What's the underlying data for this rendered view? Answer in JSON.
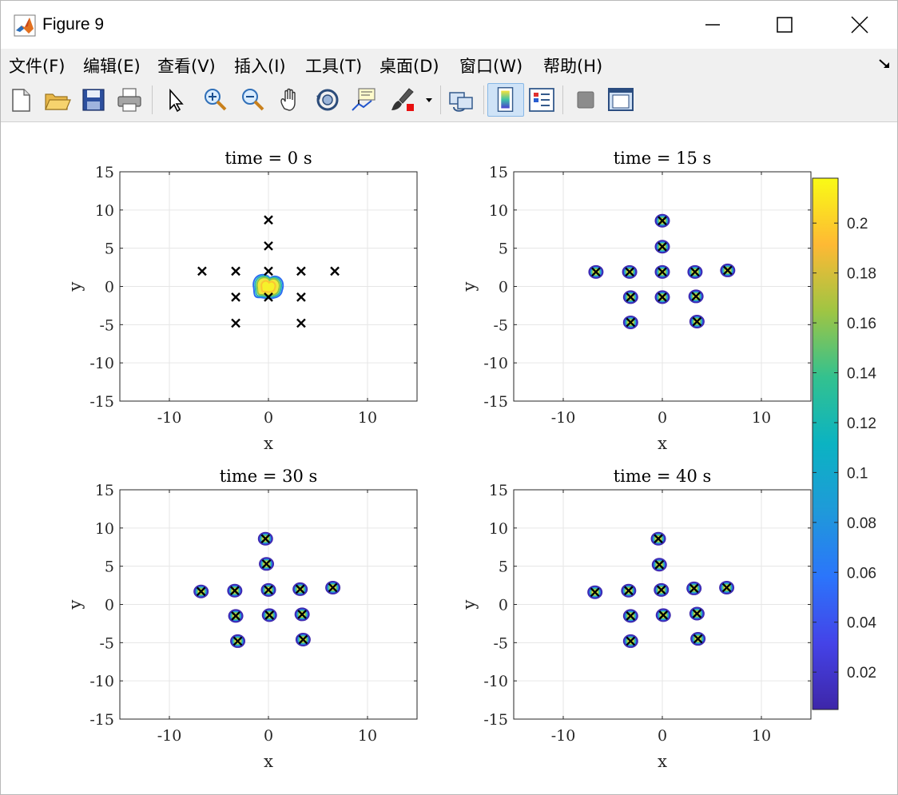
{
  "window": {
    "title": "Figure 9"
  },
  "menu": [
    {
      "label": "文件(F)"
    },
    {
      "label": "编辑(E)"
    },
    {
      "label": "查看(V)"
    },
    {
      "label": "插入(I)"
    },
    {
      "label": "工具(T)"
    },
    {
      "label": "桌面(D)"
    },
    {
      "label": "窗口(W)"
    },
    {
      "label": "帮助(H)"
    }
  ],
  "toolbar": [
    "new-figure-icon",
    "open-file-icon",
    "save-icon",
    "print-icon",
    "edit-plot-cursor-icon",
    "zoom-in-icon",
    "zoom-out-icon",
    "pan-icon",
    "rotate-3d-icon",
    "data-cursor-icon",
    "brush-icon",
    "brush-dropdown-icon",
    "link-plot-icon",
    "insert-colorbar-icon",
    "insert-legend-icon",
    "hide-plot-tools-icon",
    "show-plot-tools-icon"
  ],
  "colors": {
    "marker": "#000000",
    "grid": "#e6e6e6",
    "axis": "#262626",
    "colormap": "parula"
  },
  "chart_data": [
    {
      "type": "scatter",
      "title": "time = 0 s",
      "xlabel": "x",
      "ylabel": "y",
      "xlim": [
        -15,
        15
      ],
      "ylim": [
        -15,
        15
      ],
      "xticks": [
        -10,
        0,
        10
      ],
      "yticks": [
        -15,
        -10,
        -5,
        0,
        5,
        10,
        15
      ],
      "grid": true,
      "markers": [
        {
          "x": -6.7,
          "y": 2.0
        },
        {
          "x": -3.3,
          "y": 2.0
        },
        {
          "x": 0.0,
          "y": 2.0
        },
        {
          "x": 3.3,
          "y": 2.0
        },
        {
          "x": 6.7,
          "y": 2.0
        },
        {
          "x": 0.0,
          "y": 8.7
        },
        {
          "x": 0.0,
          "y": 5.3
        },
        {
          "x": -3.3,
          "y": -1.4
        },
        {
          "x": 0.0,
          "y": -1.4
        },
        {
          "x": 3.3,
          "y": -1.4
        },
        {
          "x": -3.3,
          "y": -4.8
        },
        {
          "x": 3.3,
          "y": -4.8
        }
      ],
      "density_blobs": [
        {
          "x": 0.0,
          "y": 0.0,
          "level": 0.2
        }
      ]
    },
    {
      "type": "scatter",
      "title": "time = 15 s",
      "xlabel": "x",
      "ylabel": "y",
      "xlim": [
        -15,
        15
      ],
      "ylim": [
        -15,
        15
      ],
      "xticks": [
        -10,
        0,
        10
      ],
      "yticks": [
        -15,
        -10,
        -5,
        0,
        5,
        10,
        15
      ],
      "grid": true,
      "markers": [
        {
          "x": -6.7,
          "y": 1.9
        },
        {
          "x": -3.3,
          "y": 1.9
        },
        {
          "x": 0.0,
          "y": 1.9
        },
        {
          "x": 3.3,
          "y": 1.9
        },
        {
          "x": 6.6,
          "y": 2.1
        },
        {
          "x": 0.0,
          "y": 8.6
        },
        {
          "x": 0.0,
          "y": 5.2
        },
        {
          "x": -3.2,
          "y": -1.4
        },
        {
          "x": 0.0,
          "y": -1.4
        },
        {
          "x": 3.4,
          "y": -1.3
        },
        {
          "x": -3.2,
          "y": -4.7
        },
        {
          "x": 3.5,
          "y": -4.6
        }
      ],
      "density_blobs": "markers"
    },
    {
      "type": "scatter",
      "title": "time = 30 s",
      "xlabel": "x",
      "ylabel": "y",
      "xlim": [
        -15,
        15
      ],
      "ylim": [
        -15,
        15
      ],
      "xticks": [
        -10,
        0,
        10
      ],
      "yticks": [
        -15,
        -10,
        -5,
        0,
        5,
        10,
        15
      ],
      "grid": true,
      "markers": [
        {
          "x": -6.8,
          "y": 1.7
        },
        {
          "x": -3.4,
          "y": 1.8
        },
        {
          "x": 0.0,
          "y": 1.9
        },
        {
          "x": 3.2,
          "y": 2.0
        },
        {
          "x": 6.5,
          "y": 2.2
        },
        {
          "x": -0.3,
          "y": 8.6
        },
        {
          "x": -0.2,
          "y": 5.3
        },
        {
          "x": -3.3,
          "y": -1.5
        },
        {
          "x": 0.1,
          "y": -1.4
        },
        {
          "x": 3.4,
          "y": -1.3
        },
        {
          "x": -3.1,
          "y": -4.8
        },
        {
          "x": 3.5,
          "y": -4.6
        }
      ],
      "density_blobs": "markers"
    },
    {
      "type": "scatter",
      "title": "time = 40 s",
      "xlabel": "x",
      "ylabel": "y",
      "xlim": [
        -15,
        15
      ],
      "ylim": [
        -15,
        15
      ],
      "xticks": [
        -10,
        0,
        10
      ],
      "yticks": [
        -15,
        -10,
        -5,
        0,
        5,
        10,
        15
      ],
      "grid": true,
      "markers": [
        {
          "x": -6.8,
          "y": 1.6
        },
        {
          "x": -3.4,
          "y": 1.8
        },
        {
          "x": -0.1,
          "y": 1.9
        },
        {
          "x": 3.2,
          "y": 2.1
        },
        {
          "x": 6.5,
          "y": 2.2
        },
        {
          "x": -0.4,
          "y": 8.6
        },
        {
          "x": -0.3,
          "y": 5.2
        },
        {
          "x": -3.2,
          "y": -1.5
        },
        {
          "x": 0.1,
          "y": -1.4
        },
        {
          "x": 3.5,
          "y": -1.2
        },
        {
          "x": -3.2,
          "y": -4.8
        },
        {
          "x": 3.6,
          "y": -4.5
        }
      ],
      "density_blobs": "markers"
    }
  ],
  "colorbar": {
    "min": 0.005,
    "max": 0.218,
    "ticks": [
      0.02,
      0.04,
      0.06,
      0.08,
      0.1,
      0.12,
      0.14,
      0.16,
      0.18,
      0.2
    ],
    "tick_labels": [
      "0.02",
      "0.04",
      "0.06",
      "0.08",
      "0.1",
      "0.12",
      "0.14",
      "0.16",
      "0.18",
      "0.2"
    ]
  }
}
